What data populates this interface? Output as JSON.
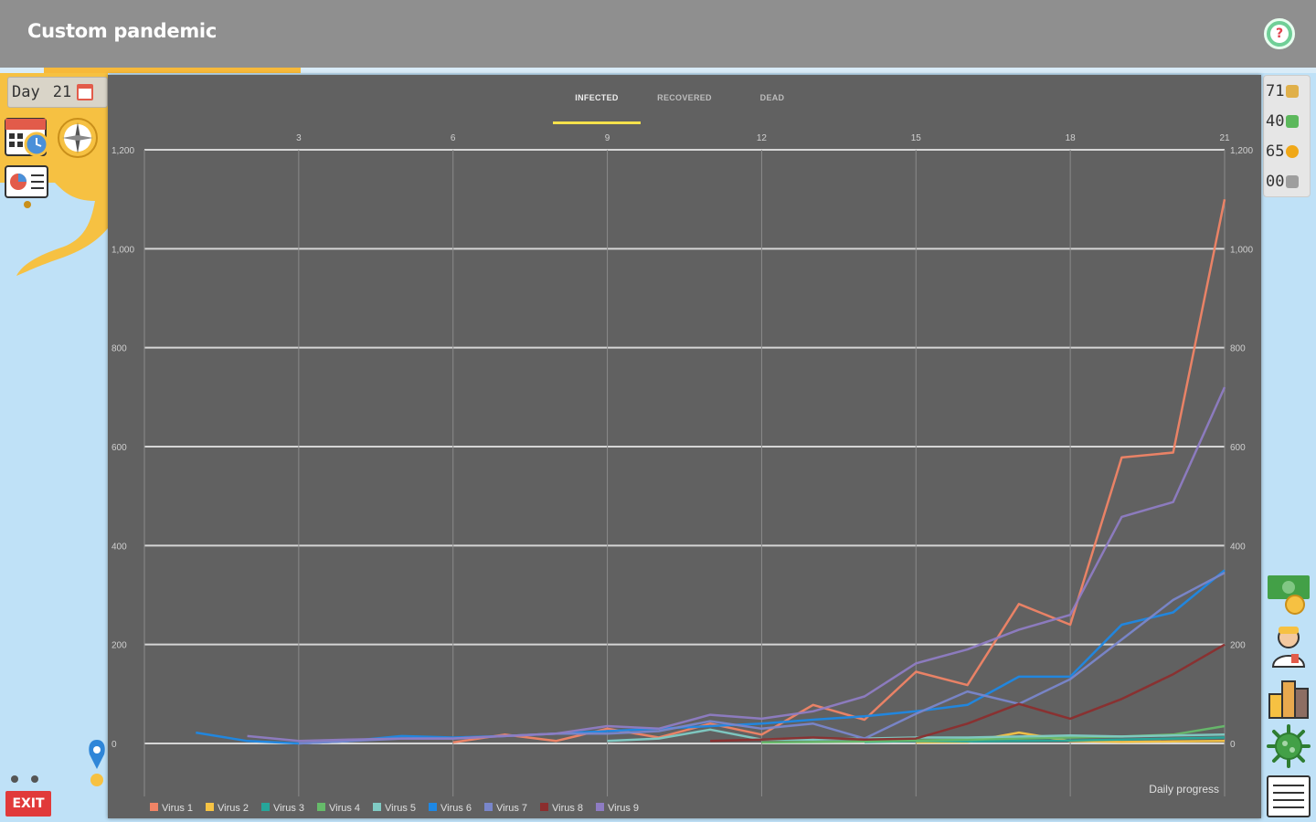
{
  "app": {
    "title": "Custom pandemic",
    "help_label": "?",
    "exit_label": "EXIT"
  },
  "progress": {
    "value": 0.195
  },
  "day": {
    "label": "Day",
    "value": "21"
  },
  "stats": [
    {
      "value": "71",
      "icon": "people-icon"
    },
    {
      "value": "40",
      "icon": "money-icon"
    },
    {
      "value": "65",
      "icon": "coin-icon"
    },
    {
      "value": "00",
      "icon": "vaccine-icon"
    }
  ],
  "tabs": [
    {
      "label": "INFECTED",
      "active": true
    },
    {
      "label": "RECOVERED",
      "active": false
    },
    {
      "label": "DEAD",
      "active": false
    }
  ],
  "chart_data": {
    "type": "line",
    "subtitle": "Daily progress",
    "x": [
      1,
      2,
      3,
      4,
      5,
      6,
      7,
      8,
      9,
      10,
      11,
      12,
      13,
      14,
      15,
      16,
      17,
      18,
      19,
      20,
      21
    ],
    "x_ticks": [
      3,
      6,
      9,
      12,
      15,
      18,
      21
    ],
    "ylim": [
      0,
      1200
    ],
    "y_ticks": [
      0,
      200,
      400,
      600,
      800,
      1000,
      1200
    ],
    "y_tick_labels": [
      "0",
      "200",
      "400",
      "600",
      "800",
      "1,000",
      "1,200"
    ],
    "grid": true,
    "legend_position": "bottom-left",
    "series": [
      {
        "name": "Virus 1",
        "color": "#f08466",
        "values": [
          null,
          null,
          null,
          null,
          null,
          2,
          18,
          5,
          30,
          12,
          40,
          18,
          78,
          48,
          145,
          118,
          282,
          240,
          578,
          588,
          1100
        ]
      },
      {
        "name": "Virus 2",
        "color": "#f6c344",
        "values": [
          null,
          null,
          null,
          null,
          null,
          null,
          null,
          null,
          null,
          null,
          null,
          null,
          null,
          null,
          2,
          3,
          22,
          5,
          3,
          4,
          5
        ]
      },
      {
        "name": "Virus 3",
        "color": "#26a69a",
        "values": [
          null,
          null,
          null,
          null,
          null,
          null,
          null,
          null,
          null,
          null,
          null,
          null,
          null,
          3,
          5,
          4,
          5,
          6,
          8,
          10,
          12
        ]
      },
      {
        "name": "Virus 4",
        "color": "#66bb6a",
        "values": [
          null,
          null,
          null,
          null,
          null,
          null,
          null,
          null,
          null,
          null,
          null,
          2,
          3,
          4,
          6,
          8,
          10,
          12,
          14,
          18,
          35
        ]
      },
      {
        "name": "Virus 5",
        "color": "#80cbc4",
        "values": [
          null,
          null,
          null,
          null,
          null,
          null,
          null,
          null,
          5,
          10,
          28,
          8,
          8,
          10,
          12,
          12,
          14,
          16,
          14,
          16,
          18
        ]
      },
      {
        "name": "Virus 6",
        "color": "#1e88e5",
        "values": [
          22,
          5,
          0,
          5,
          15,
          12,
          15,
          20,
          25,
          30,
          35,
          40,
          48,
          55,
          65,
          78,
          135,
          135,
          240,
          265,
          350
        ]
      },
      {
        "name": "Virus 7",
        "color": "#7986cb",
        "values": [
          null,
          null,
          0,
          5,
          10,
          10,
          15,
          20,
          20,
          25,
          45,
          30,
          40,
          10,
          60,
          105,
          80,
          130,
          210,
          290,
          345
        ]
      },
      {
        "name": "Virus 8",
        "color": "#8b2e2e",
        "values": [
          null,
          null,
          null,
          null,
          null,
          null,
          null,
          null,
          null,
          null,
          5,
          8,
          12,
          8,
          10,
          40,
          80,
          50,
          90,
          140,
          200
        ]
      },
      {
        "name": "Virus 9",
        "color": "#8e7cc3",
        "values": [
          null,
          15,
          5,
          8,
          10,
          10,
          15,
          20,
          35,
          30,
          58,
          50,
          65,
          95,
          162,
          190,
          230,
          260,
          458,
          488,
          720
        ]
      }
    ]
  }
}
